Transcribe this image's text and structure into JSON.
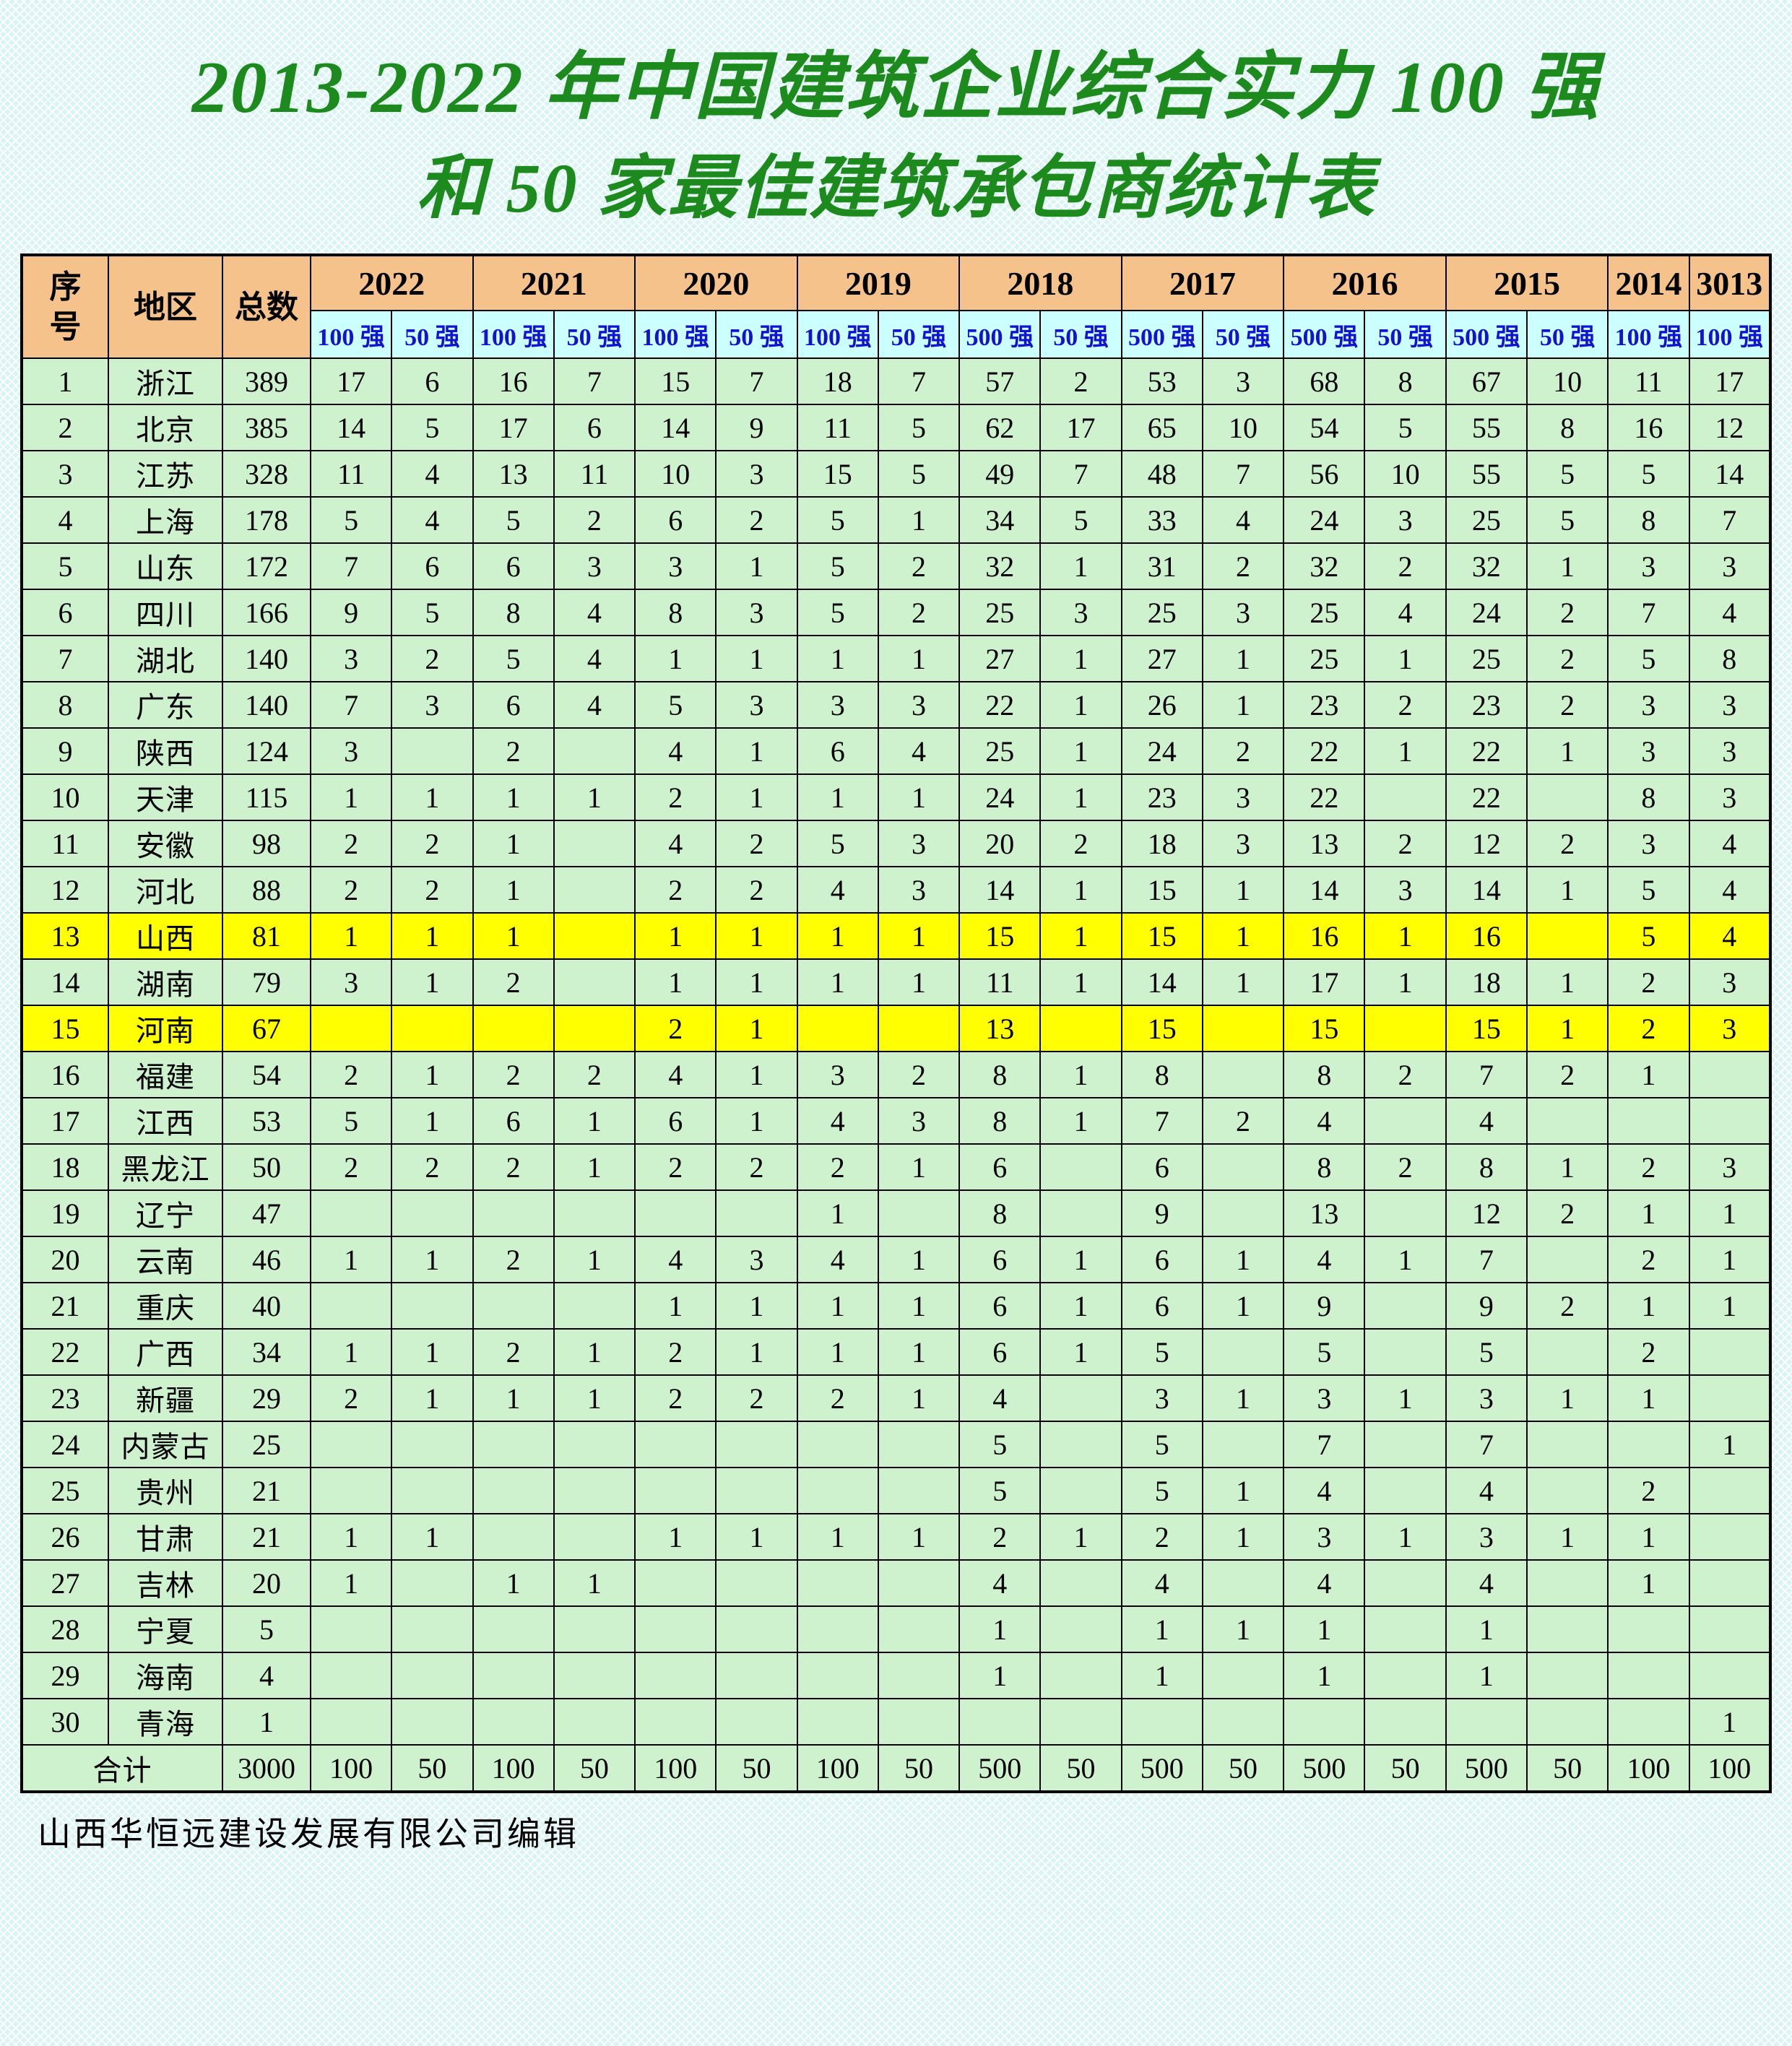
{
  "title": {
    "line1": "2013-2022 年中国建筑企业综合实力 100 强",
    "line2": "和 50 家最佳建筑承包商统计表"
  },
  "footer": "山西华恒远建设发展有限公司编辑",
  "colors": {
    "title_green": "#1d8a1d",
    "year_header_bg": "#f6c28b",
    "subheader_bg": "#ccffff",
    "subheader_text": "#1212cf",
    "row_bg": "#cdf2cd",
    "highlight_bg": "#ffff00",
    "border": "#000000",
    "page_bg": "#d9f4f2"
  },
  "table": {
    "corner_headers": {
      "index": "序\n号",
      "region": "地区",
      "total": "总数"
    },
    "year_groups": [
      {
        "year": "2022",
        "cols": [
          "100 强",
          "50 强"
        ]
      },
      {
        "year": "2021",
        "cols": [
          "100 强",
          "50 强"
        ]
      },
      {
        "year": "2020",
        "cols": [
          "100 强",
          "50 强"
        ]
      },
      {
        "year": "2019",
        "cols": [
          "100 强",
          "50 强"
        ]
      },
      {
        "year": "2018",
        "cols": [
          "500 强",
          "50 强"
        ]
      },
      {
        "year": "2017",
        "cols": [
          "500 强",
          "50 强"
        ]
      },
      {
        "year": "2016",
        "cols": [
          "500 强",
          "50 强"
        ]
      },
      {
        "year": "2015",
        "cols": [
          "500 强",
          "50 强"
        ]
      },
      {
        "year": "2014",
        "cols": [
          "100 强"
        ]
      },
      {
        "year": "3013",
        "cols": [
          "100 强"
        ]
      }
    ],
    "rows": [
      {
        "no": "1",
        "region": "浙江",
        "total": "389",
        "highlight": false,
        "values": [
          "17",
          "6",
          "16",
          "7",
          "15",
          "7",
          "18",
          "7",
          "57",
          "2",
          "53",
          "3",
          "68",
          "8",
          "67",
          "10",
          "11",
          "17"
        ]
      },
      {
        "no": "2",
        "region": "北京",
        "total": "385",
        "highlight": false,
        "values": [
          "14",
          "5",
          "17",
          "6",
          "14",
          "9",
          "11",
          "5",
          "62",
          "17",
          "65",
          "10",
          "54",
          "5",
          "55",
          "8",
          "16",
          "12"
        ]
      },
      {
        "no": "3",
        "region": "江苏",
        "total": "328",
        "highlight": false,
        "values": [
          "11",
          "4",
          "13",
          "11",
          "10",
          "3",
          "15",
          "5",
          "49",
          "7",
          "48",
          "7",
          "56",
          "10",
          "55",
          "5",
          "5",
          "14"
        ]
      },
      {
        "no": "4",
        "region": "上海",
        "total": "178",
        "highlight": false,
        "values": [
          "5",
          "4",
          "5",
          "2",
          "6",
          "2",
          "5",
          "1",
          "34",
          "5",
          "33",
          "4",
          "24",
          "3",
          "25",
          "5",
          "8",
          "7"
        ]
      },
      {
        "no": "5",
        "region": "山东",
        "total": "172",
        "highlight": false,
        "values": [
          "7",
          "6",
          "6",
          "3",
          "3",
          "1",
          "5",
          "2",
          "32",
          "1",
          "31",
          "2",
          "32",
          "2",
          "32",
          "1",
          "3",
          "3"
        ]
      },
      {
        "no": "6",
        "region": "四川",
        "total": "166",
        "highlight": false,
        "values": [
          "9",
          "5",
          "8",
          "4",
          "8",
          "3",
          "5",
          "2",
          "25",
          "3",
          "25",
          "3",
          "25",
          "4",
          "24",
          "2",
          "7",
          "4"
        ]
      },
      {
        "no": "7",
        "region": "湖北",
        "total": "140",
        "highlight": false,
        "values": [
          "3",
          "2",
          "5",
          "4",
          "1",
          "1",
          "1",
          "1",
          "27",
          "1",
          "27",
          "1",
          "25",
          "1",
          "25",
          "2",
          "5",
          "8"
        ]
      },
      {
        "no": "8",
        "region": "广东",
        "total": "140",
        "highlight": false,
        "values": [
          "7",
          "3",
          "6",
          "4",
          "5",
          "3",
          "3",
          "3",
          "22",
          "1",
          "26",
          "1",
          "23",
          "2",
          "23",
          "2",
          "3",
          "3"
        ]
      },
      {
        "no": "9",
        "region": "陕西",
        "total": "124",
        "highlight": false,
        "values": [
          "3",
          "",
          "2",
          "",
          "4",
          "1",
          "6",
          "4",
          "25",
          "1",
          "24",
          "2",
          "22",
          "1",
          "22",
          "1",
          "3",
          "3"
        ]
      },
      {
        "no": "10",
        "region": "天津",
        "total": "115",
        "highlight": false,
        "values": [
          "1",
          "1",
          "1",
          "1",
          "2",
          "1",
          "1",
          "1",
          "24",
          "1",
          "23",
          "3",
          "22",
          "",
          "22",
          "",
          "8",
          "3"
        ]
      },
      {
        "no": "11",
        "region": "安徽",
        "total": "98",
        "highlight": false,
        "values": [
          "2",
          "2",
          "1",
          "",
          "4",
          "2",
          "5",
          "3",
          "20",
          "2",
          "18",
          "3",
          "13",
          "2",
          "12",
          "2",
          "3",
          "4"
        ]
      },
      {
        "no": "12",
        "region": "河北",
        "total": "88",
        "highlight": false,
        "values": [
          "2",
          "2",
          "1",
          "",
          "2",
          "2",
          "4",
          "3",
          "14",
          "1",
          "15",
          "1",
          "14",
          "3",
          "14",
          "1",
          "5",
          "4"
        ]
      },
      {
        "no": "13",
        "region": "山西",
        "total": "81",
        "highlight": true,
        "values": [
          "1",
          "1",
          "1",
          "",
          "1",
          "1",
          "1",
          "1",
          "15",
          "1",
          "15",
          "1",
          "16",
          "1",
          "16",
          "",
          "5",
          "4"
        ]
      },
      {
        "no": "14",
        "region": "湖南",
        "total": "79",
        "highlight": false,
        "values": [
          "3",
          "1",
          "2",
          "",
          "1",
          "1",
          "1",
          "1",
          "11",
          "1",
          "14",
          "1",
          "17",
          "1",
          "18",
          "1",
          "2",
          "3"
        ]
      },
      {
        "no": "15",
        "region": "河南",
        "total": "67",
        "highlight": true,
        "values": [
          "",
          "",
          "",
          "",
          "2",
          "1",
          "",
          "",
          "13",
          "",
          "15",
          "",
          "15",
          "",
          "15",
          "1",
          "2",
          "3"
        ]
      },
      {
        "no": "16",
        "region": "福建",
        "total": "54",
        "highlight": false,
        "values": [
          "2",
          "1",
          "2",
          "2",
          "4",
          "1",
          "3",
          "2",
          "8",
          "1",
          "8",
          "",
          "8",
          "2",
          "7",
          "2",
          "1",
          ""
        ]
      },
      {
        "no": "17",
        "region": "江西",
        "total": "53",
        "highlight": false,
        "values": [
          "5",
          "1",
          "6",
          "1",
          "6",
          "1",
          "4",
          "3",
          "8",
          "1",
          "7",
          "2",
          "4",
          "",
          "4",
          "",
          "",
          ""
        ]
      },
      {
        "no": "18",
        "region": "黑龙江",
        "total": "50",
        "highlight": false,
        "values": [
          "2",
          "2",
          "2",
          "1",
          "2",
          "2",
          "2",
          "1",
          "6",
          "",
          "6",
          "",
          "8",
          "2",
          "8",
          "1",
          "2",
          "3"
        ]
      },
      {
        "no": "19",
        "region": "辽宁",
        "total": "47",
        "highlight": false,
        "values": [
          "",
          "",
          "",
          "",
          "",
          "",
          "1",
          "",
          "8",
          "",
          "9",
          "",
          "13",
          "",
          "12",
          "2",
          "1",
          "1"
        ]
      },
      {
        "no": "20",
        "region": "云南",
        "total": "46",
        "highlight": false,
        "values": [
          "1",
          "1",
          "2",
          "1",
          "4",
          "3",
          "4",
          "1",
          "6",
          "1",
          "6",
          "1",
          "4",
          "1",
          "7",
          "",
          "2",
          "1"
        ]
      },
      {
        "no": "21",
        "region": "重庆",
        "total": "40",
        "highlight": false,
        "values": [
          "",
          "",
          "",
          "",
          "1",
          "1",
          "1",
          "1",
          "6",
          "1",
          "6",
          "1",
          "9",
          "",
          "9",
          "2",
          "1",
          "1"
        ]
      },
      {
        "no": "22",
        "region": "广西",
        "total": "34",
        "highlight": false,
        "values": [
          "1",
          "1",
          "2",
          "1",
          "2",
          "1",
          "1",
          "1",
          "6",
          "1",
          "5",
          "",
          "5",
          "",
          "5",
          "",
          "2",
          ""
        ]
      },
      {
        "no": "23",
        "region": "新疆",
        "total": "29",
        "highlight": false,
        "values": [
          "2",
          "1",
          "1",
          "1",
          "2",
          "2",
          "2",
          "1",
          "4",
          "",
          "3",
          "1",
          "3",
          "1",
          "3",
          "1",
          "1",
          ""
        ]
      },
      {
        "no": "24",
        "region": "内蒙古",
        "total": "25",
        "highlight": false,
        "values": [
          "",
          "",
          "",
          "",
          "",
          "",
          "",
          "",
          "5",
          "",
          "5",
          "",
          "7",
          "",
          "7",
          "",
          "",
          "1"
        ]
      },
      {
        "no": "25",
        "region": "贵州",
        "total": "21",
        "highlight": false,
        "values": [
          "",
          "",
          "",
          "",
          "",
          "",
          "",
          "",
          "5",
          "",
          "5",
          "1",
          "4",
          "",
          "4",
          "",
          "2",
          ""
        ]
      },
      {
        "no": "26",
        "region": "甘肃",
        "total": "21",
        "highlight": false,
        "values": [
          "1",
          "1",
          "",
          "",
          "1",
          "1",
          "1",
          "1",
          "2",
          "1",
          "2",
          "1",
          "3",
          "1",
          "3",
          "1",
          "1",
          ""
        ]
      },
      {
        "no": "27",
        "region": "吉林",
        "total": "20",
        "highlight": false,
        "values": [
          "1",
          "",
          "1",
          "1",
          "",
          "",
          "",
          "",
          "4",
          "",
          "4",
          "",
          "4",
          "",
          "4",
          "",
          "1",
          ""
        ]
      },
      {
        "no": "28",
        "region": "宁夏",
        "total": "5",
        "highlight": false,
        "values": [
          "",
          "",
          "",
          "",
          "",
          "",
          "",
          "",
          "1",
          "",
          "1",
          "1",
          "1",
          "",
          "1",
          "",
          "",
          ""
        ]
      },
      {
        "no": "29",
        "region": "海南",
        "total": "4",
        "highlight": false,
        "values": [
          "",
          "",
          "",
          "",
          "",
          "",
          "",
          "",
          "1",
          "",
          "1",
          "",
          "1",
          "",
          "1",
          "",
          "",
          ""
        ]
      },
      {
        "no": "30",
        "region": "青海",
        "total": "1",
        "highlight": false,
        "values": [
          "",
          "",
          "",
          "",
          "",
          "",
          "",
          "",
          "",
          "",
          "",
          "",
          "",
          "",
          "",
          "",
          "",
          "1"
        ]
      }
    ],
    "total_row": {
      "label": "合计",
      "total": "3000",
      "values": [
        "100",
        "50",
        "100",
        "50",
        "100",
        "50",
        "100",
        "50",
        "500",
        "50",
        "500",
        "50",
        "500",
        "50",
        "500",
        "50",
        "100",
        "100"
      ]
    }
  }
}
